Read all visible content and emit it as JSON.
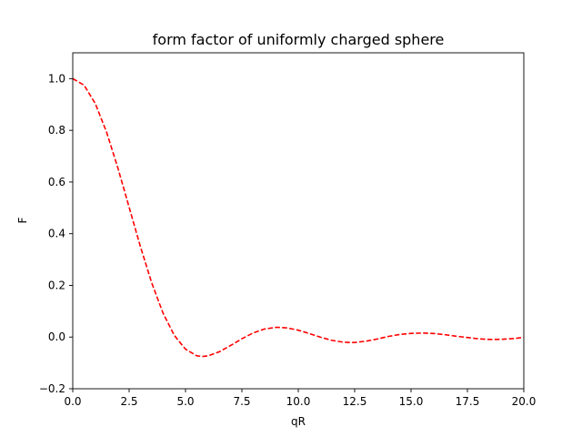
{
  "chart_data": {
    "type": "line",
    "title": "form factor of uniformly charged sphere",
    "xlabel": "qR",
    "ylabel": "F",
    "xlim": [
      0,
      20
    ],
    "ylim": [
      -0.2,
      1.1
    ],
    "xticks": [
      0,
      2.5,
      5,
      7.5,
      10,
      12.5,
      15,
      17.5,
      20
    ],
    "xtick_labels": [
      "0.0",
      "2.5",
      "5.0",
      "7.5",
      "10.0",
      "12.5",
      "15.0",
      "17.5",
      "20.0"
    ],
    "yticks": [
      -0.2,
      0,
      0.2,
      0.4,
      0.6,
      0.8,
      1.0
    ],
    "ytick_labels": [
      "−0.2",
      "0.0",
      "0.2",
      "0.4",
      "0.6",
      "0.8",
      "1.0"
    ],
    "grid": false,
    "series": [
      {
        "color": "#ff0000",
        "line_style": "dashed",
        "x": [
          0,
          0.5,
          1,
          1.5,
          2,
          2.5,
          3,
          3.5,
          4,
          4.5,
          5,
          5.5,
          5.76,
          6,
          6.5,
          7,
          7.5,
          8,
          8.5,
          9,
          9.1,
          9.5,
          10,
          10.5,
          11,
          11.5,
          12,
          12.32,
          12.5,
          13,
          13.5,
          14,
          14.5,
          15,
          15.52,
          16,
          16.5,
          17,
          17.5,
          18,
          18.5,
          18.69,
          19,
          19.5,
          20
        ],
        "y": [
          1.0,
          0.975,
          0.9036,
          0.7929,
          0.6546,
          0.5023,
          0.3499,
          0.2102,
          0.0935,
          0.0068,
          -0.0469,
          -0.0725,
          -0.0751,
          -0.0727,
          -0.0569,
          -0.0326,
          -0.0066,
          0.0159,
          0.0311,
          0.0375,
          0.0377,
          0.0355,
          0.0266,
          0.0134,
          -0.0009,
          -0.0129,
          -0.0199,
          -0.0212,
          -0.0209,
          -0.016,
          -0.0075,
          0.0025,
          0.01,
          0.0142,
          0.0156,
          0.0138,
          0.0092,
          0.0034,
          -0.0017,
          -0.0069,
          -0.0092,
          -0.0092,
          -0.0087,
          -0.006,
          -0.0015
        ]
      }
    ]
  }
}
